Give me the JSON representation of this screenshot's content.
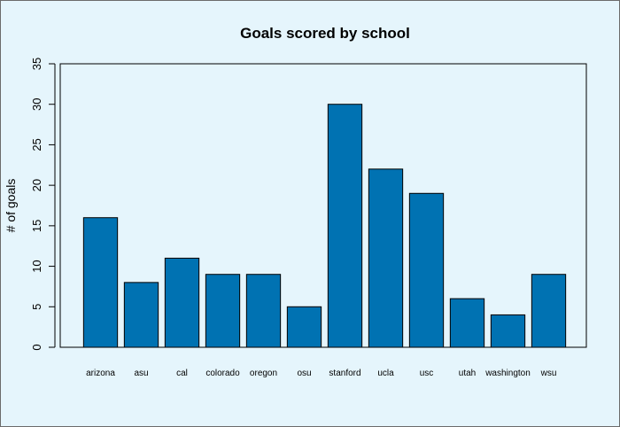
{
  "chart_data": {
    "type": "bar",
    "title": "Goals scored by school",
    "xlabel": "",
    "ylabel": "# of goals",
    "categories": [
      "arizona",
      "asu",
      "cal",
      "colorado",
      "oregon",
      "osu",
      "stanford",
      "ucla",
      "usc",
      "utah",
      "washington",
      "wsu"
    ],
    "values": [
      16,
      8,
      11,
      9,
      9,
      5,
      30,
      22,
      19,
      6,
      4,
      9
    ],
    "yticks": [
      "0",
      "5",
      "10",
      "15",
      "20",
      "25",
      "30",
      "35"
    ],
    "ylim": [
      0,
      35
    ],
    "grid": false,
    "bar_color": "#0072b2",
    "background_color": "#e5f5fc"
  }
}
